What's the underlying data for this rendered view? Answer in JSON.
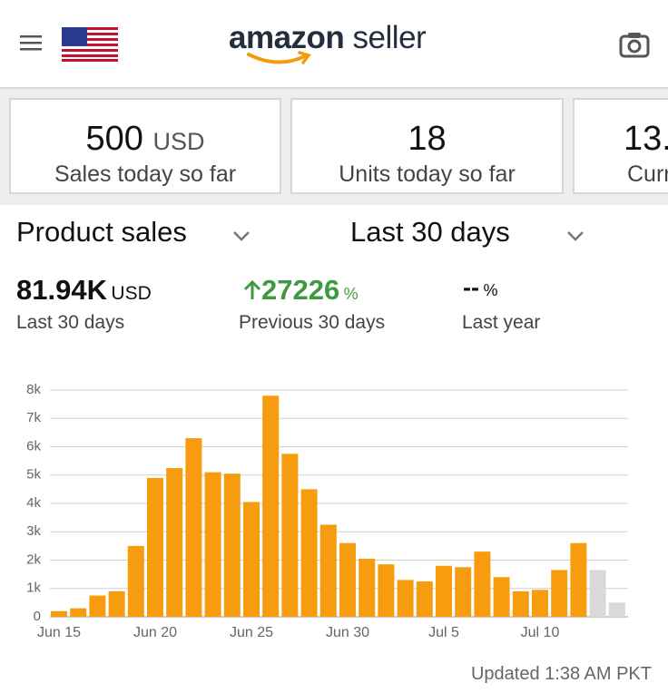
{
  "header": {
    "logo_word": "amazon",
    "logo_rest": "seller"
  },
  "cards": [
    {
      "value": "500",
      "unit": "USD",
      "label": "Sales today so far"
    },
    {
      "value": "18",
      "label": "Units today so far"
    },
    {
      "value": "13.",
      "label": "Curr"
    }
  ],
  "selectors": {
    "metric": "Product sales",
    "period": "Last 30 days"
  },
  "stats": [
    {
      "value": "81.94K",
      "unit": "USD",
      "label": "Last 30 days"
    },
    {
      "value": "27226",
      "unit": "%",
      "label": "Previous 30 days"
    },
    {
      "value": "--",
      "unit": "%",
      "label": "Last year"
    }
  ],
  "chart_data": {
    "type": "bar",
    "categories": [
      "Jun 15",
      null,
      null,
      null,
      null,
      "Jun 20",
      null,
      null,
      null,
      null,
      "Jun 25",
      null,
      null,
      null,
      null,
      "Jun 30",
      null,
      null,
      null,
      null,
      "Jul 5",
      null,
      null,
      null,
      null,
      "Jul 10",
      null,
      null,
      null,
      null
    ],
    "values": [
      200,
      300,
      750,
      900,
      2500,
      4900,
      5250,
      6300,
      5100,
      5050,
      4050,
      7800,
      5750,
      4500,
      3250,
      2600,
      2050,
      1850,
      1300,
      1250,
      1800,
      1750,
      2300,
      1400,
      900,
      950,
      1650,
      2600,
      1650,
      500
    ],
    "colors": [
      "#f79b0f",
      "#f79b0f",
      "#f79b0f",
      "#f79b0f",
      "#f79b0f",
      "#f79b0f",
      "#f79b0f",
      "#f79b0f",
      "#f79b0f",
      "#f79b0f",
      "#f79b0f",
      "#f79b0f",
      "#f79b0f",
      "#f79b0f",
      "#f79b0f",
      "#f79b0f",
      "#f79b0f",
      "#f79b0f",
      "#f79b0f",
      "#f79b0f",
      "#f79b0f",
      "#f79b0f",
      "#f79b0f",
      "#f79b0f",
      "#f79b0f",
      "#f79b0f",
      "#f79b0f",
      "#f79b0f",
      "#d9d9d9",
      "#d9d9d9"
    ],
    "ylim": [
      0,
      8000
    ],
    "yticks": [
      0,
      {
        "value": 1000,
        "label": "1k"
      },
      {
        "value": 2000,
        "label": "2k"
      },
      {
        "value": 3000,
        "label": "3k"
      },
      {
        "value": 4000,
        "label": "4k"
      },
      {
        "value": 5000,
        "label": "5k"
      },
      {
        "value": 6000,
        "label": "6k"
      },
      {
        "value": 7000,
        "label": "7k"
      },
      {
        "value": 8000,
        "label": "8k"
      }
    ],
    "grid": true
  },
  "footer": "Updated 1:38 AM PKT"
}
